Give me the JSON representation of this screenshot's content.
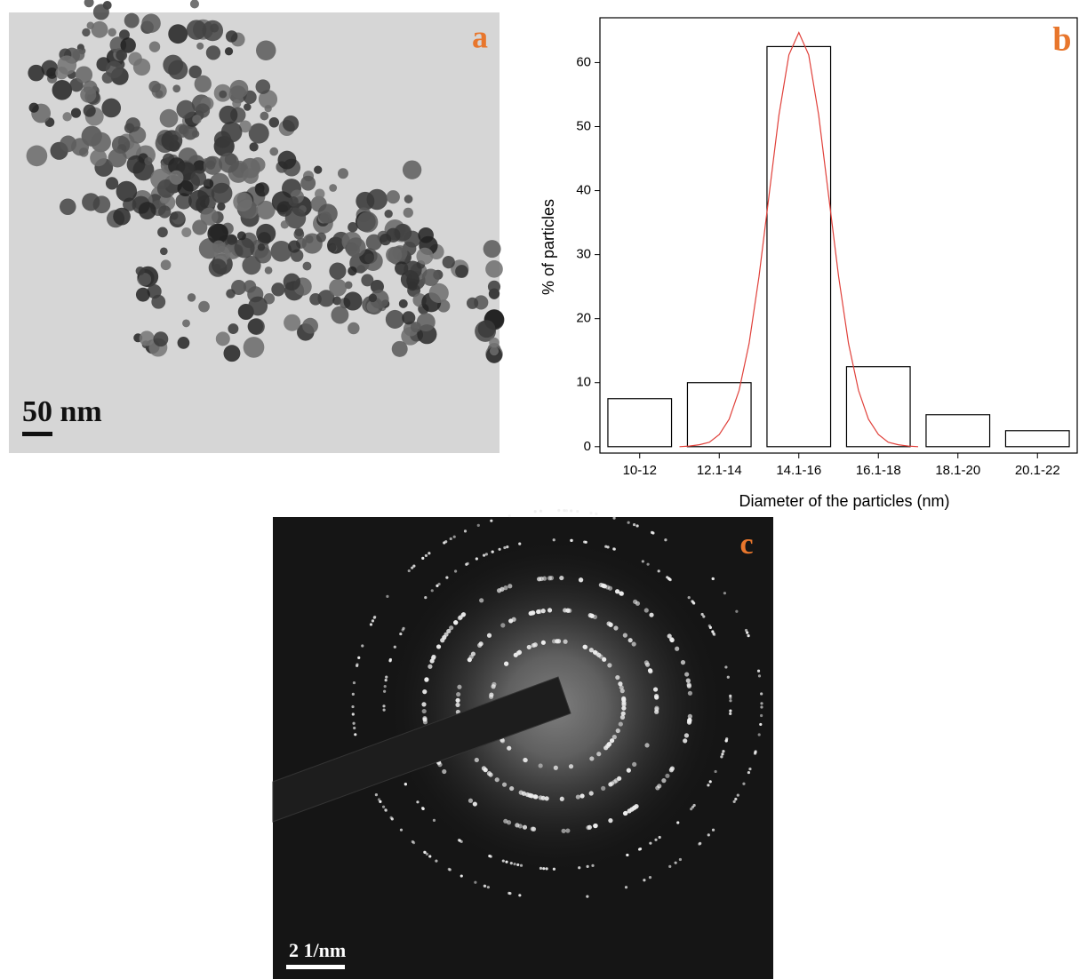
{
  "panel_a": {
    "label": "a",
    "scale_bar": "50 nm"
  },
  "panel_c": {
    "label": "c",
    "scale_bar": "2 1/nm"
  },
  "chart_data": {
    "type": "bar",
    "panel_label": "b",
    "x_label": "Diameter of the particles (nm)",
    "y_label": "% of particles",
    "categories": [
      "10-12",
      "12.1-14",
      "14.1-16",
      "16.1-18",
      "18.1-20",
      "20.1-22"
    ],
    "values": [
      7.5,
      10,
      62.5,
      12.5,
      5,
      2.5
    ],
    "color": "#ffffff",
    "edge_color": "#000000",
    "xlim": [
      10,
      22
    ],
    "ylim": [
      -1,
      67
    ],
    "yticks": [
      0,
      10,
      20,
      30,
      40,
      50,
      60
    ],
    "fit": {
      "type": "line",
      "color": "#e0403a",
      "x": [
        12,
        12.25,
        12.5,
        12.75,
        13,
        13.25,
        13.5,
        13.75,
        14,
        14.25,
        14.5,
        14.75,
        15,
        15.25,
        15.5,
        15.75,
        16,
        16.25,
        16.5,
        16.75,
        17,
        17.25,
        17.5,
        17.75,
        18
      ],
      "values": [
        0.0,
        0.1,
        0.3,
        0.7,
        1.9,
        4.3,
        8.8,
        16.1,
        26.6,
        39.2,
        51.8,
        61.2,
        64.7,
        61.2,
        51.8,
        39.2,
        26.6,
        16.1,
        8.8,
        4.3,
        1.9,
        0.7,
        0.3,
        0.1,
        0.0
      ]
    }
  }
}
